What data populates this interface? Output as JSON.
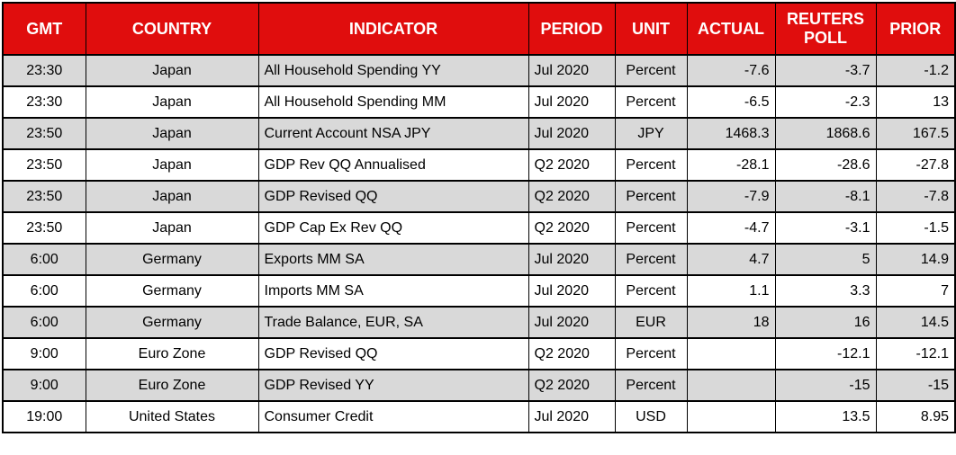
{
  "chart_data": {
    "type": "table",
    "columns": [
      "GMT",
      "COUNTRY",
      "INDICATOR",
      "PERIOD",
      "UNIT",
      "ACTUAL",
      "REUTERS POLL",
      "PRIOR"
    ],
    "rows": [
      [
        "23:30",
        "Japan",
        "All Household Spending YY",
        "Jul 2020",
        "Percent",
        "-7.6",
        "-3.7",
        "-1.2"
      ],
      [
        "23:30",
        "Japan",
        "All Household Spending MM",
        "Jul 2020",
        "Percent",
        "-6.5",
        "-2.3",
        "13"
      ],
      [
        "23:50",
        "Japan",
        "Current Account NSA JPY",
        "Jul 2020",
        "JPY",
        "1468.3",
        "1868.6",
        "167.5"
      ],
      [
        "23:50",
        "Japan",
        "GDP Rev QQ Annualised",
        "Q2 2020",
        "Percent",
        "-28.1",
        "-28.6",
        "-27.8"
      ],
      [
        "23:50",
        "Japan",
        "GDP Revised QQ",
        "Q2 2020",
        "Percent",
        "-7.9",
        "-8.1",
        "-7.8"
      ],
      [
        "23:50",
        "Japan",
        "GDP Cap Ex Rev QQ",
        "Q2 2020",
        "Percent",
        "-4.7",
        "-3.1",
        "-1.5"
      ],
      [
        "6:00",
        "Germany",
        "Exports MM SA",
        "Jul 2020",
        "Percent",
        "4.7",
        "5",
        "14.9"
      ],
      [
        "6:00",
        "Germany",
        "Imports MM SA",
        "Jul 2020",
        "Percent",
        "1.1",
        "3.3",
        "7"
      ],
      [
        "6:00",
        "Germany",
        "Trade Balance, EUR, SA",
        "Jul 2020",
        "EUR",
        "18",
        "16",
        "14.5"
      ],
      [
        "9:00",
        "Euro Zone",
        "GDP Revised QQ",
        "Q2 2020",
        "Percent",
        "",
        "-12.1",
        "-12.1"
      ],
      [
        "9:00",
        "Euro Zone",
        "GDP Revised YY",
        "Q2 2020",
        "Percent",
        "",
        "-15",
        "-15"
      ],
      [
        "19:00",
        "United States",
        "Consumer Credit",
        "Jul 2020",
        "USD",
        "",
        "13.5",
        "8.95"
      ]
    ]
  },
  "colors": {
    "header_bg": "#E00D0D",
    "header_text": "#FFFFFF",
    "row_stripe": "#D9D9D9",
    "row_plain": "#FFFFFF",
    "border": "#000000",
    "text": "#000000"
  }
}
